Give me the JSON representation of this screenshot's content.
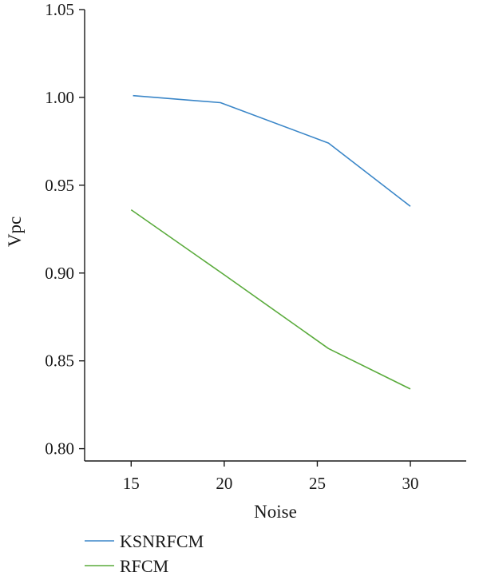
{
  "chart_data": {
    "type": "line",
    "title": "",
    "xlabel": "Noise",
    "ylabel": "Vpc",
    "x_ticks": [
      "15",
      "20",
      "25",
      "30"
    ],
    "y_ticks": [
      "0.80",
      "0.85",
      "0.90",
      "0.95",
      "1.00",
      "1.05"
    ],
    "xlim": [
      12.5,
      33
    ],
    "ylim": [
      0.793,
      1.05
    ],
    "grid": false,
    "legend_position": "bottom-left",
    "series": [
      {
        "name": "KSNRFCM",
        "color": "#3a86c8",
        "points": [
          [
            15.1,
            1.001
          ],
          [
            19.8,
            0.997
          ],
          [
            25.6,
            0.974
          ],
          [
            30,
            0.938
          ]
        ]
      },
      {
        "name": "RFCM",
        "color": "#5aab3c",
        "points": [
          [
            15,
            0.936
          ],
          [
            20,
            0.899
          ],
          [
            25.6,
            0.857
          ],
          [
            30,
            0.834
          ]
        ]
      }
    ]
  }
}
